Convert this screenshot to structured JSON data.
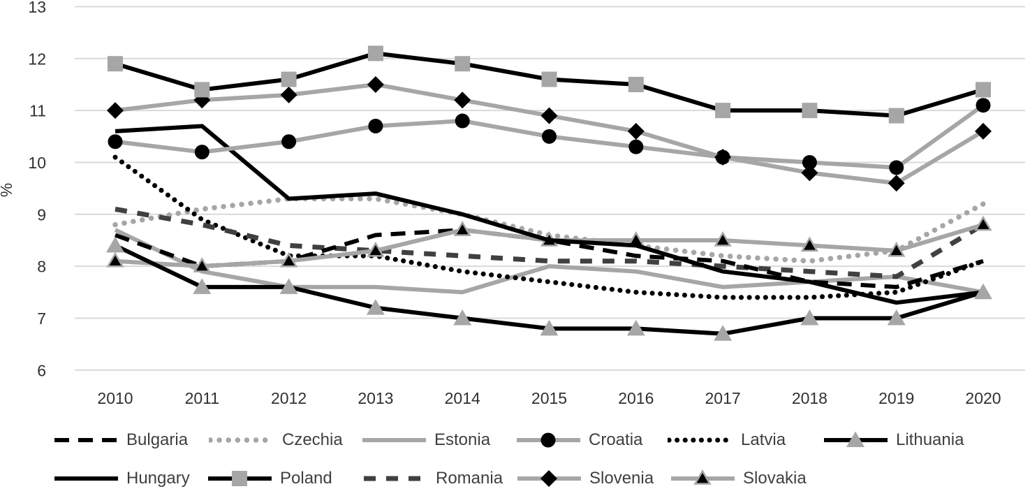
{
  "chart_data": {
    "type": "line",
    "title": "",
    "xlabel": "",
    "ylabel": "%",
    "ylim": [
      6,
      13
    ],
    "y_ticks": [
      6,
      7,
      8,
      9,
      10,
      11,
      12,
      13
    ],
    "grid": "horizontal",
    "legend_position": "bottom",
    "categories": [
      2010,
      2011,
      2012,
      2013,
      2014,
      2015,
      2016,
      2017,
      2018,
      2019,
      2020
    ],
    "series": [
      {
        "name": "Bulgaria",
        "line_color": "#000000",
        "line_style": "dash",
        "marker": "none",
        "values": [
          8.6,
          8.0,
          8.1,
          8.6,
          8.7,
          8.5,
          8.2,
          8.1,
          7.7,
          7.6,
          8.1
        ]
      },
      {
        "name": "Czechia",
        "line_color": "#a6a6a6",
        "line_style": "dot",
        "marker": "none",
        "values": [
          8.8,
          9.1,
          9.3,
          9.3,
          9.0,
          8.6,
          8.4,
          8.2,
          8.1,
          8.3,
          9.2
        ]
      },
      {
        "name": "Estonia",
        "line_color": "#a6a6a6",
        "line_style": "solid",
        "marker": "none",
        "values": [
          8.7,
          7.9,
          7.6,
          7.6,
          7.5,
          8.0,
          7.9,
          7.6,
          7.7,
          7.8,
          7.5
        ]
      },
      {
        "name": "Croatia",
        "line_color": "#a6a6a6",
        "line_style": "solid",
        "marker": "circle",
        "marker_fill": "#000000",
        "values": [
          10.4,
          10.2,
          10.4,
          10.7,
          10.8,
          10.5,
          10.3,
          10.1,
          10.0,
          9.9,
          11.1
        ]
      },
      {
        "name": "Latvia",
        "line_color": "#000000",
        "line_style": "dot",
        "marker": "none",
        "values": [
          10.1,
          8.9,
          8.2,
          8.2,
          7.9,
          7.7,
          7.5,
          7.4,
          7.4,
          7.5,
          8.1
        ]
      },
      {
        "name": "Lithuania",
        "line_color": "#000000",
        "line_style": "solid",
        "marker": "triangle",
        "marker_fill": "#a6a6a6",
        "values": [
          8.4,
          7.6,
          7.6,
          7.2,
          7.0,
          6.8,
          6.8,
          6.7,
          7.0,
          7.0,
          7.5
        ]
      },
      {
        "name": "Hungary",
        "line_color": "#000000",
        "line_style": "solid",
        "marker": "none",
        "values": [
          10.6,
          10.7,
          9.3,
          9.4,
          9.0,
          8.5,
          8.4,
          7.9,
          7.7,
          7.3,
          7.5
        ]
      },
      {
        "name": "Poland",
        "line_color": "#000000",
        "line_style": "solid",
        "marker": "square",
        "marker_fill": "#a6a6a6",
        "values": [
          11.9,
          11.4,
          11.6,
          12.1,
          11.9,
          11.6,
          11.5,
          11.0,
          11.0,
          10.9,
          11.4
        ]
      },
      {
        "name": "Romania",
        "line_color": "#404040",
        "line_style": "dash",
        "marker": "none",
        "values": [
          9.1,
          8.8,
          8.4,
          8.3,
          8.2,
          8.1,
          8.1,
          8.0,
          7.9,
          7.8,
          8.8
        ]
      },
      {
        "name": "Slovenia",
        "line_color": "#a6a6a6",
        "line_style": "solid",
        "marker": "diamond",
        "marker_fill": "#000000",
        "values": [
          11.0,
          11.2,
          11.3,
          11.5,
          11.2,
          10.9,
          10.6,
          10.1,
          9.8,
          9.6,
          10.6
        ]
      },
      {
        "name": "Slovakia",
        "line_color": "#a6a6a6",
        "line_style": "solid",
        "marker": "triangle",
        "marker_fill": "#000000",
        "marker_stroke": "#a6a6a6",
        "values": [
          8.1,
          8.0,
          8.1,
          8.3,
          8.7,
          8.5,
          8.5,
          8.5,
          8.4,
          8.3,
          8.8
        ]
      }
    ],
    "legend_rows": [
      [
        "Bulgaria",
        "Czechia",
        "Estonia",
        "Croatia",
        "Latvia",
        "Lithuania"
      ],
      [
        "Hungary",
        "Poland",
        "Romania",
        "Slovenia",
        "Slovakia"
      ]
    ],
    "colors": {
      "black": "#000000",
      "gray": "#a6a6a6",
      "dark_gray": "#404040",
      "gridline": "#d9d9d9",
      "tick_text": "#303030",
      "legend_text": "#3f3f3f"
    }
  }
}
